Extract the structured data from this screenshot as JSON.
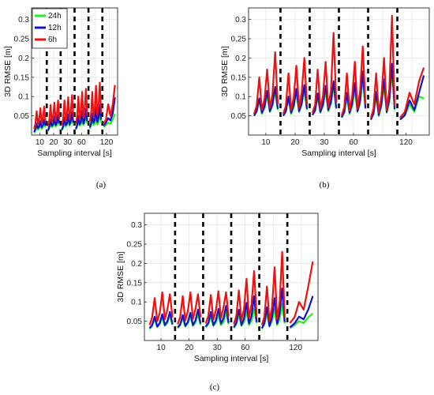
{
  "colors": {
    "24h": "#22ee22",
    "12h": "#1111cc",
    "6h": "#ee1111",
    "separator": "#000000",
    "grid": "#e6e6e6"
  },
  "chart_data": [
    {
      "type": "line",
      "panel_label": "(a)",
      "xlabel": "Sampling interval [s]",
      "ylabel": "3D RMSE [m]",
      "ylim": [
        0,
        0.33
      ],
      "yticks": [
        0.05,
        0.1,
        0.15,
        0.2,
        0.25,
        0.3
      ],
      "xtick_labels": [
        "10",
        "20",
        "30",
        "60",
        "120"
      ],
      "grid": true,
      "legend": {
        "position": "top-left",
        "entries": [
          "24h",
          "12h",
          "6h"
        ]
      },
      "series": [
        {
          "name": "24h",
          "groups": [
            [
              0.005,
              0.012,
              0.022,
              0.014,
              0.018,
              0.028,
              0.016,
              0.02,
              0.032,
              0.02
            ],
            [
              0.01,
              0.018,
              0.03,
              0.02,
              0.024,
              0.036,
              0.022,
              0.026,
              0.04,
              0.026
            ],
            [
              0.012,
              0.02,
              0.034,
              0.022,
              0.026,
              0.04,
              0.024,
              0.03,
              0.046,
              0.028
            ],
            [
              0.014,
              0.022,
              0.036,
              0.024,
              0.028,
              0.044,
              0.026,
              0.032,
              0.052,
              0.03
            ],
            [
              0.016,
              0.024,
              0.04,
              0.026,
              0.03,
              0.048,
              0.028,
              0.034,
              0.058,
              0.032
            ],
            [
              0.02,
              0.026,
              0.032,
              0.03,
              0.04,
              0.055
            ]
          ]
        },
        {
          "name": "12h",
          "groups": [
            [
              0.008,
              0.016,
              0.03,
              0.018,
              0.022,
              0.036,
              0.02,
              0.026,
              0.04,
              0.024
            ],
            [
              0.012,
              0.022,
              0.04,
              0.024,
              0.028,
              0.048,
              0.026,
              0.032,
              0.052,
              0.03
            ],
            [
              0.014,
              0.024,
              0.046,
              0.026,
              0.03,
              0.054,
              0.028,
              0.036,
              0.06,
              0.032
            ],
            [
              0.016,
              0.026,
              0.05,
              0.028,
              0.034,
              0.062,
              0.03,
              0.04,
              0.068,
              0.036
            ],
            [
              0.02,
              0.03,
              0.056,
              0.032,
              0.04,
              0.072,
              0.034,
              0.046,
              0.078,
              0.04
            ],
            [
              0.024,
              0.032,
              0.044,
              0.038,
              0.056,
              0.098
            ]
          ]
        },
        {
          "name": "6h",
          "groups": [
            [
              0.016,
              0.03,
              0.062,
              0.028,
              0.04,
              0.07,
              0.032,
              0.044,
              0.074,
              0.036
            ],
            [
              0.022,
              0.038,
              0.078,
              0.034,
              0.048,
              0.084,
              0.038,
              0.054,
              0.09,
              0.042
            ],
            [
              0.026,
              0.044,
              0.09,
              0.038,
              0.054,
              0.098,
              0.042,
              0.06,
              0.104,
              0.046
            ],
            [
              0.03,
              0.048,
              0.1,
              0.042,
              0.06,
              0.112,
              0.046,
              0.066,
              0.12,
              0.05
            ],
            [
              0.036,
              0.054,
              0.112,
              0.048,
              0.068,
              0.128,
              0.052,
              0.074,
              0.136,
              0.056
            ],
            [
              0.03,
              0.04,
              0.08,
              0.05,
              0.08,
              0.13
            ]
          ]
        }
      ]
    },
    {
      "type": "line",
      "panel_label": "(b)",
      "xlabel": "Sampling interval [s]",
      "ylabel": "3D RMSE [m]",
      "ylim": [
        0,
        0.33
      ],
      "yticks": [
        0.05,
        0.1,
        0.15,
        0.2,
        0.25,
        0.3
      ],
      "xtick_labels": [
        "10",
        "20",
        "30",
        "60",
        "120"
      ],
      "grid": true,
      "series": [
        {
          "name": "24h",
          "groups": [
            [
              0.05,
              0.06,
              0.09,
              0.055,
              0.07,
              0.105,
              0.06,
              0.075,
              0.115,
              0.065
            ],
            [
              0.05,
              0.06,
              0.095,
              0.055,
              0.072,
              0.11,
              0.06,
              0.078,
              0.12,
              0.065
            ],
            [
              0.052,
              0.062,
              0.1,
              0.058,
              0.075,
              0.115,
              0.062,
              0.08,
              0.13,
              0.068
            ],
            [
              0.045,
              0.058,
              0.1,
              0.055,
              0.075,
              0.12,
              0.06,
              0.082,
              0.15,
              0.068
            ],
            [
              0.04,
              0.055,
              0.1,
              0.05,
              0.075,
              0.13,
              0.058,
              0.085,
              0.17,
              0.065
            ],
            [
              0.04,
              0.05,
              0.08,
              0.06,
              0.1,
              0.095
            ]
          ]
        },
        {
          "name": "12h",
          "groups": [
            [
              0.05,
              0.062,
              0.095,
              0.058,
              0.075,
              0.115,
              0.062,
              0.08,
              0.125,
              0.068
            ],
            [
              0.05,
              0.062,
              0.1,
              0.058,
              0.078,
              0.12,
              0.062,
              0.082,
              0.13,
              0.068
            ],
            [
              0.052,
              0.064,
              0.108,
              0.06,
              0.08,
              0.128,
              0.065,
              0.086,
              0.14,
              0.07
            ],
            [
              0.046,
              0.06,
              0.11,
              0.058,
              0.082,
              0.135,
              0.062,
              0.09,
              0.165,
              0.07
            ],
            [
              0.04,
              0.056,
              0.112,
              0.052,
              0.082,
              0.145,
              0.06,
              0.094,
              0.185,
              0.068
            ],
            [
              0.04,
              0.052,
              0.09,
              0.065,
              0.11,
              0.155
            ]
          ]
        },
        {
          "name": "6h",
          "groups": [
            [
              0.055,
              0.075,
              0.15,
              0.065,
              0.095,
              0.17,
              0.07,
              0.105,
              0.215,
              0.08
            ],
            [
              0.055,
              0.075,
              0.16,
              0.065,
              0.098,
              0.18,
              0.07,
              0.11,
              0.2,
              0.08
            ],
            [
              0.058,
              0.078,
              0.17,
              0.068,
              0.102,
              0.19,
              0.072,
              0.115,
              0.265,
              0.085
            ],
            [
              0.05,
              0.072,
              0.16,
              0.064,
              0.1,
              0.19,
              0.068,
              0.115,
              0.23,
              0.08
            ],
            [
              0.045,
              0.068,
              0.16,
              0.058,
              0.1,
              0.2,
              0.065,
              0.12,
              0.31,
              0.075
            ],
            [
              0.045,
              0.06,
              0.11,
              0.08,
              0.14,
              0.175
            ]
          ]
        }
      ]
    },
    {
      "type": "line",
      "panel_label": "(c)",
      "xlabel": "Sampling interval [s]",
      "ylabel": "3D RMSE [m]",
      "ylim": [
        0,
        0.33
      ],
      "yticks": [
        0.05,
        0.1,
        0.15,
        0.2,
        0.25,
        0.3
      ],
      "xtick_labels": [
        "10",
        "20",
        "30",
        "60",
        "120"
      ],
      "grid": true,
      "series": [
        {
          "name": "24h",
          "groups": [
            [
              0.03,
              0.038,
              0.055,
              0.035,
              0.042,
              0.06,
              0.038,
              0.045,
              0.065,
              0.04
            ],
            [
              0.032,
              0.04,
              0.058,
              0.036,
              0.044,
              0.062,
              0.038,
              0.046,
              0.068,
              0.04
            ],
            [
              0.034,
              0.042,
              0.062,
              0.038,
              0.046,
              0.066,
              0.04,
              0.048,
              0.072,
              0.042
            ],
            [
              0.032,
              0.042,
              0.066,
              0.038,
              0.048,
              0.074,
              0.04,
              0.052,
              0.082,
              0.044
            ],
            [
              0.03,
              0.042,
              0.07,
              0.036,
              0.05,
              0.082,
              0.04,
              0.056,
              0.095,
              0.044
            ],
            [
              0.032,
              0.04,
              0.05,
              0.045,
              0.06,
              0.07
            ]
          ]
        },
        {
          "name": "12h",
          "groups": [
            [
              0.032,
              0.04,
              0.062,
              0.036,
              0.046,
              0.068,
              0.04,
              0.05,
              0.074,
              0.042
            ],
            [
              0.034,
              0.042,
              0.066,
              0.038,
              0.048,
              0.072,
              0.04,
              0.052,
              0.08,
              0.044
            ],
            [
              0.036,
              0.046,
              0.074,
              0.04,
              0.052,
              0.082,
              0.044,
              0.058,
              0.09,
              0.046
            ],
            [
              0.034,
              0.046,
              0.08,
              0.04,
              0.056,
              0.098,
              0.044,
              0.064,
              0.115,
              0.048
            ],
            [
              0.032,
              0.046,
              0.086,
              0.038,
              0.06,
              0.11,
              0.044,
              0.07,
              0.135,
              0.048
            ],
            [
              0.034,
              0.044,
              0.062,
              0.055,
              0.08,
              0.115
            ]
          ]
        },
        {
          "name": "6h",
          "groups": [
            [
              0.04,
              0.06,
              0.11,
              0.05,
              0.072,
              0.125,
              0.055,
              0.08,
              0.12,
              0.06
            ],
            [
              0.042,
              0.062,
              0.115,
              0.052,
              0.075,
              0.125,
              0.056,
              0.082,
              0.12,
              0.06
            ],
            [
              0.044,
              0.064,
              0.118,
              0.054,
              0.078,
              0.128,
              0.058,
              0.086,
              0.125,
              0.062
            ],
            [
              0.042,
              0.064,
              0.13,
              0.052,
              0.082,
              0.16,
              0.058,
              0.095,
              0.18,
              0.062
            ],
            [
              0.04,
              0.062,
              0.14,
              0.05,
              0.086,
              0.19,
              0.056,
              0.1,
              0.23,
              0.06
            ],
            [
              0.045,
              0.06,
              0.1,
              0.08,
              0.14,
              0.205
            ]
          ]
        }
      ]
    }
  ]
}
